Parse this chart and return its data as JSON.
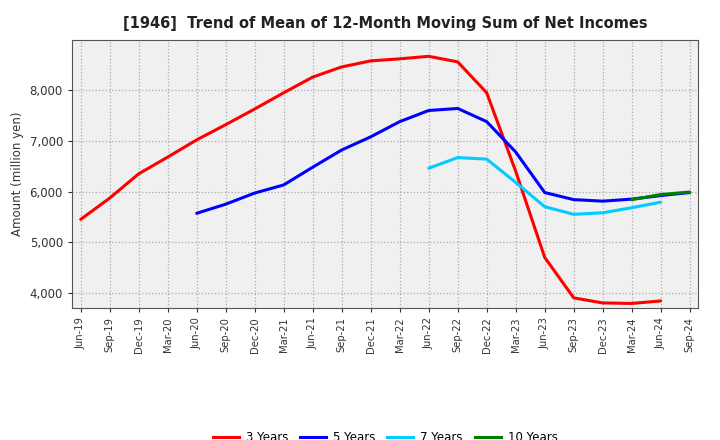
{
  "title": "[1946]  Trend of Mean of 12-Month Moving Sum of Net Incomes",
  "ylabel": "Amount (million yen)",
  "background_color": "#ffffff",
  "plot_bg_color": "#f0f0f0",
  "grid_color": "#aaaaaa",
  "ylim": [
    3700,
    9000
  ],
  "yticks": [
    4000,
    5000,
    6000,
    7000,
    8000
  ],
  "x_labels": [
    "Jun-19",
    "Sep-19",
    "Dec-19",
    "Mar-20",
    "Jun-20",
    "Sep-20",
    "Dec-20",
    "Mar-21",
    "Jun-21",
    "Sep-21",
    "Dec-21",
    "Mar-22",
    "Jun-22",
    "Sep-22",
    "Dec-22",
    "Mar-23",
    "Jun-23",
    "Sep-23",
    "Dec-23",
    "Mar-24",
    "Jun-24",
    "Sep-24"
  ],
  "series": {
    "3 Years": {
      "color": "#ff0000",
      "values": [
        5450,
        5870,
        6350,
        6680,
        7020,
        7320,
        7630,
        7950,
        8260,
        8460,
        8580,
        8620,
        8670,
        8560,
        7950,
        6400,
        4700,
        3900,
        3800,
        3790,
        3840,
        null
      ]
    },
    "5 Years": {
      "color": "#0000ff",
      "values": [
        null,
        null,
        null,
        null,
        5570,
        5750,
        5970,
        6130,
        6480,
        6820,
        7080,
        7380,
        7600,
        7640,
        7380,
        6780,
        5980,
        5840,
        5810,
        5850,
        5920,
        5980
      ]
    },
    "7 Years": {
      "color": "#00ccff",
      "values": [
        null,
        null,
        null,
        null,
        null,
        null,
        null,
        null,
        null,
        null,
        null,
        null,
        6460,
        6670,
        6640,
        6180,
        5700,
        5550,
        5580,
        5680,
        5790,
        null
      ]
    },
    "10 Years": {
      "color": "#008000",
      "values": [
        null,
        null,
        null,
        null,
        null,
        null,
        null,
        null,
        null,
        null,
        null,
        null,
        null,
        null,
        null,
        null,
        null,
        null,
        null,
        5840,
        5940,
        5990
      ]
    }
  }
}
